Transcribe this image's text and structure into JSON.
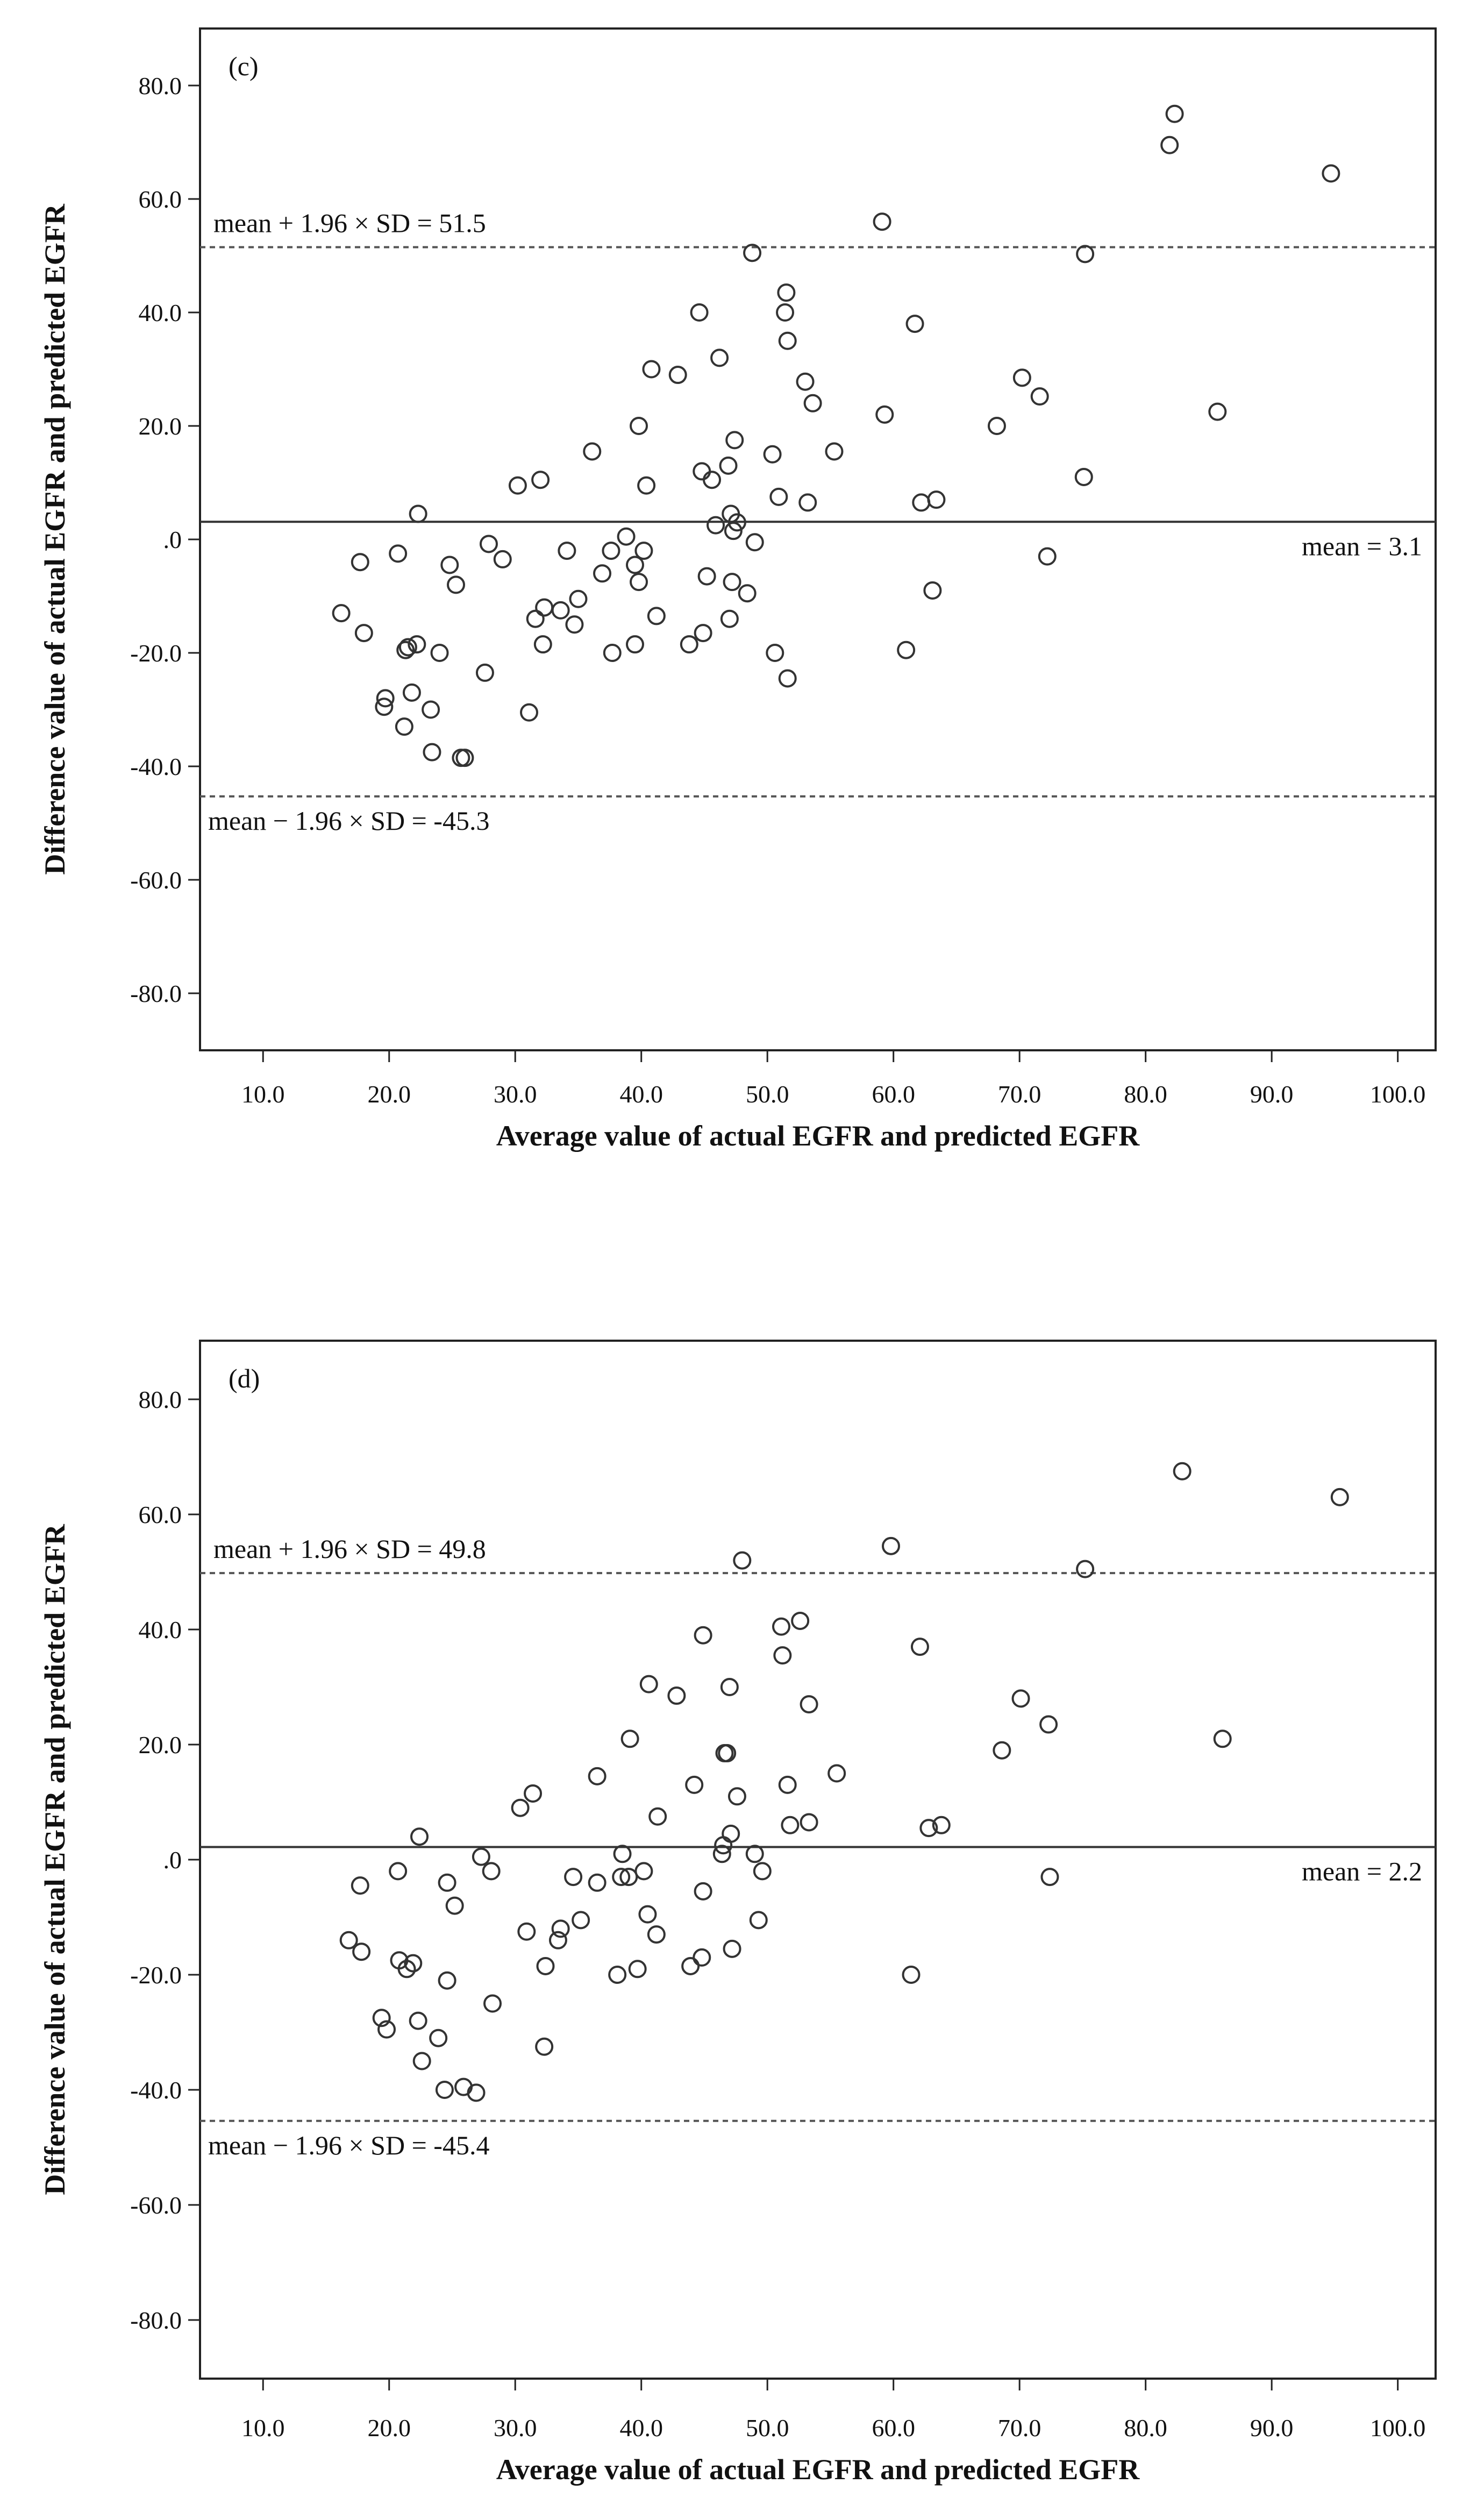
{
  "chart_data": [
    {
      "type": "scatter",
      "panel_label": "(c)",
      "xlabel": "Average value of actual EGFR and predicted EGFR",
      "ylabel": "Difference value of actual EGFR and predicted EGFR",
      "xlim": [
        5,
        103
      ],
      "ylim": [
        -90,
        90
      ],
      "x_ticks": [
        10,
        20,
        30,
        40,
        50,
        60,
        70,
        80,
        90,
        100
      ],
      "x_tick_labels": [
        "10.0",
        "20.0",
        "30.0",
        "40.0",
        "50.0",
        "60.0",
        "70.0",
        "80.0",
        "90.0",
        "100.0"
      ],
      "y_ticks": [
        80,
        60,
        40,
        20,
        0,
        -20,
        -40,
        -60,
        -80
      ],
      "y_tick_labels": [
        "80.0",
        "60.0",
        "40.0",
        "20.0",
        ".0",
        "-20.0",
        "-40.0",
        "-60.0",
        "-80.0"
      ],
      "grid": false,
      "reference_lines": [
        {
          "name": "upper-limit",
          "value": 51.5,
          "label": "mean + 1.96 × SD = 51.5",
          "style": "dashed",
          "label_anchor": "top-left"
        },
        {
          "name": "mean",
          "value": 3.1,
          "label": "mean = 3.1",
          "style": "solid",
          "label_anchor": "bottom-right"
        },
        {
          "name": "lower-limit",
          "value": -45.3,
          "label": "mean − 1.96 × SD = -45.3",
          "style": "dashed",
          "label_anchor": "bottom-left"
        }
      ],
      "series": [
        {
          "name": "differences",
          "x": [
            82.3,
            81.9,
            94.7,
            59.1,
            48.8,
            75.2,
            51.5,
            51.4,
            44.6,
            61.7,
            51.6,
            46.2,
            40.8,
            42.9,
            70.2,
            53.0,
            71.6,
            53.6,
            59.3,
            68.2,
            85.7,
            39.8,
            47.4,
            36.1,
            55.3,
            50.4,
            46.9,
            44.8,
            45.6,
            32.0,
            30.2,
            40.4,
            75.1,
            63.4,
            62.2,
            50.9,
            53.2,
            22.3,
            47.1,
            45.9,
            47.6,
            47.3,
            38.8,
            49.0,
            27.9,
            40.2,
            20.7,
            37.6,
            34.1,
            29.0,
            17.7,
            24.8,
            39.5,
            36.9,
            45.2,
            47.2,
            72.2,
            39.8,
            25.3,
            63.1,
            48.4,
            35.0,
            33.6,
            32.3,
            31.6,
            47.0,
            16.2,
            41.2,
            34.7,
            18.0,
            44.9,
            32.2,
            43.8,
            39.5,
            61.0,
            21.5,
            21.3,
            22.2,
            37.7,
            50.6,
            24.0,
            51.6,
            27.6,
            21.8,
            19.7,
            19.6,
            23.3,
            31.1,
            21.2,
            23.4,
            25.7,
            26.0
          ],
          "y": [
            75.0,
            69.5,
            64.5,
            56.0,
            50.5,
            50.3,
            43.5,
            40.0,
            40.0,
            38.0,
            35.0,
            32.0,
            30.0,
            29.0,
            28.5,
            27.8,
            25.2,
            24.0,
            22.0,
            20.0,
            22.5,
            20.0,
            17.5,
            15.5,
            15.5,
            15.0,
            13.0,
            12.0,
            10.5,
            10.5,
            9.5,
            9.5,
            11.0,
            7.0,
            6.5,
            7.5,
            6.5,
            4.5,
            4.5,
            2.5,
            3.0,
            1.5,
            0.5,
            -0.5,
            -0.8,
            -2.0,
            -2.5,
            -2.0,
            -2.0,
            -3.5,
            -4.0,
            -4.5,
            -4.5,
            -6.0,
            -6.5,
            -7.5,
            -3.0,
            -7.5,
            -8.0,
            -9.0,
            -9.5,
            -10.5,
            -12.5,
            -12.0,
            -14.0,
            -14.0,
            -13.0,
            -13.5,
            -15.0,
            -16.5,
            -16.5,
            -18.5,
            -18.5,
            -18.5,
            -19.5,
            -19.0,
            -19.5,
            -18.5,
            -20.0,
            -20.0,
            -20.0,
            -24.5,
            -23.5,
            -27.0,
            -28.0,
            -29.5,
            -30.0,
            -30.5,
            -33.0,
            -37.5,
            -38.5,
            -38.5
          ]
        }
      ]
    },
    {
      "type": "scatter",
      "panel_label": "(d)",
      "xlabel": "Average value of actual EGFR and predicted EGFR",
      "ylabel": "Difference value of actual EGFR and predicted EGFR",
      "xlim": [
        5,
        103
      ],
      "ylim": [
        -90,
        90
      ],
      "x_ticks": [
        10,
        20,
        30,
        40,
        50,
        60,
        70,
        80,
        90,
        100
      ],
      "x_tick_labels": [
        "10.0",
        "20.0",
        "30.0",
        "40.0",
        "50.0",
        "60.0",
        "70.0",
        "80.0",
        "90.0",
        "100.0"
      ],
      "y_ticks": [
        80,
        60,
        40,
        20,
        0,
        -20,
        -40,
        -60,
        -80
      ],
      "y_tick_labels": [
        "80.0",
        "60.0",
        "40.0",
        "20.0",
        ".0",
        "-20.0",
        "-40.0",
        "-60.0",
        "-80.0"
      ],
      "grid": false,
      "reference_lines": [
        {
          "name": "upper-limit",
          "value": 49.8,
          "label": "mean + 1.96 × SD = 49.8",
          "style": "dashed",
          "label_anchor": "top-left"
        },
        {
          "name": "mean",
          "value": 2.2,
          "label": "mean = 2.2",
          "style": "solid",
          "label_anchor": "bottom-right"
        },
        {
          "name": "lower-limit",
          "value": -45.4,
          "label": "mean − 1.96 × SD = -45.4",
          "style": "dashed",
          "label_anchor": "bottom-left"
        }
      ],
      "series": [
        {
          "name": "differences",
          "x": [
            82.9,
            95.4,
            59.8,
            48.0,
            75.2,
            52.6,
            44.9,
            51.1,
            62.1,
            51.2,
            40.6,
            47.0,
            42.8,
            70.1,
            72.3,
            53.3,
            39.1,
            68.6,
            86.1,
            36.5,
            46.8,
            46.6,
            55.5,
            51.6,
            44.2,
            31.4,
            30.4,
            47.6,
            41.3,
            51.8,
            53.3,
            63.8,
            62.8,
            22.4,
            47.1,
            46.5,
            46.4,
            49.0,
            38.5,
            27.3,
            28.1,
            20.7,
            40.2,
            38.4,
            39.0,
            17.7,
            24.6,
            36.5,
            49.6,
            72.4,
            34.6,
            44.9,
            25.2,
            40.5,
            35.2,
            49.3,
            33.6,
            30.9,
            41.2,
            33.4,
            16.8,
            17.8,
            47.2,
            44.8,
            20.8,
            43.9,
            39.7,
            32.4,
            21.4,
            38.1,
            21.9,
            61.4,
            24.6,
            28.2,
            22.3,
            19.4,
            19.8,
            23.9,
            32.3,
            22.6,
            24.4,
            25.9,
            26.9
          ],
          "y": [
            67.5,
            63.0,
            54.5,
            52.0,
            50.5,
            41.5,
            39.0,
            40.5,
            37.0,
            35.5,
            30.5,
            30.0,
            28.5,
            28.0,
            23.5,
            27.0,
            21.0,
            19.0,
            21.0,
            14.5,
            18.5,
            18.5,
            15.0,
            13.0,
            13.0,
            11.5,
            9.0,
            11.0,
            7.5,
            6.0,
            6.5,
            6.0,
            5.5,
            4.0,
            4.5,
            2.5,
            1.0,
            1.0,
            1.0,
            0.5,
            -2.0,
            -2.0,
            -2.0,
            -3.0,
            -3.0,
            -4.5,
            -4.0,
            -4.0,
            -2.0,
            -3.0,
            -3.0,
            -5.5,
            -8.0,
            -9.5,
            -10.5,
            -10.5,
            -12.0,
            -12.5,
            -13.0,
            -14.0,
            -14.0,
            -16.0,
            -15.5,
            -17.0,
            -17.5,
            -18.5,
            -19.0,
            -18.5,
            -19.0,
            -20.0,
            -18.0,
            -20.0,
            -21.0,
            -25.0,
            -28.0,
            -27.5,
            -29.5,
            -31.0,
            -32.5,
            -35.0,
            -40.0,
            -39.5,
            -40.5
          ]
        }
      ]
    }
  ]
}
